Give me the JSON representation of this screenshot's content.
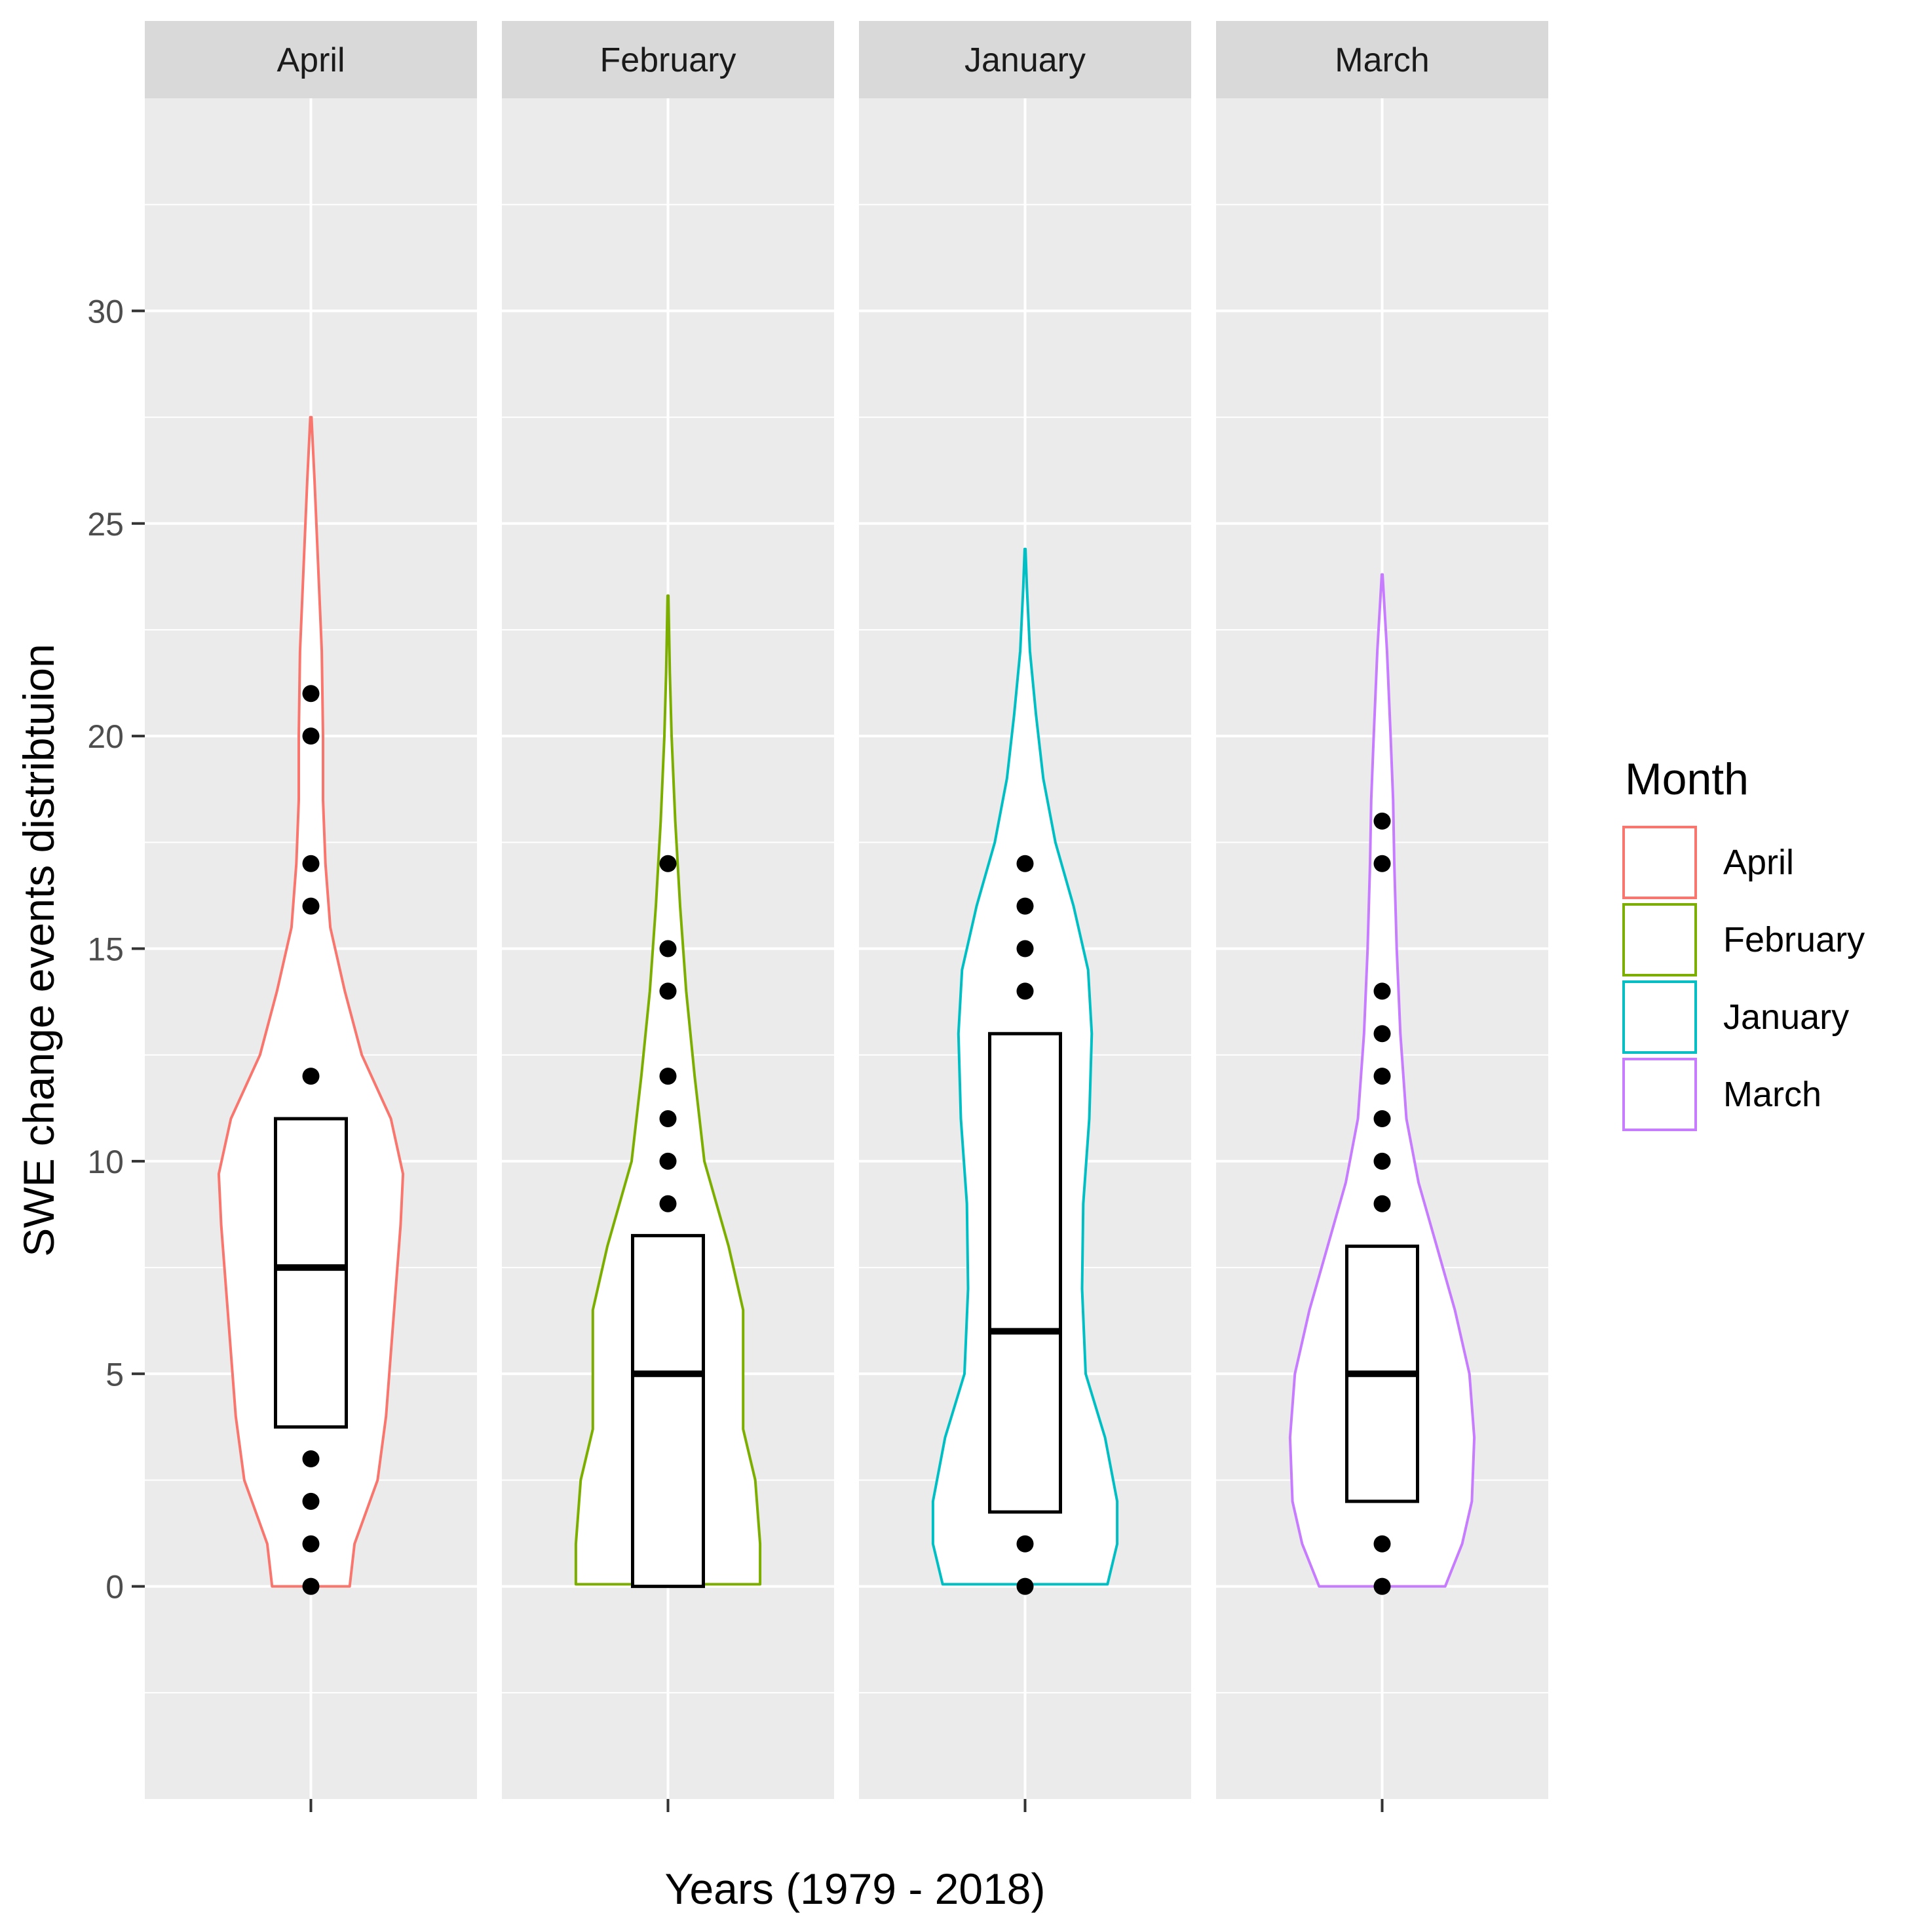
{
  "chart_data": {
    "type": "violin",
    "facet_by": "Month",
    "xlabel": "Years (1979 - 2018)",
    "ylabel": "SWE change events distribtuion",
    "ylim": [
      -5,
      35
    ],
    "y_ticks": [
      0,
      5,
      10,
      15,
      20,
      25,
      30
    ],
    "y_tick_labels": [
      "0",
      "5",
      "10",
      "15",
      "20",
      "25",
      "30"
    ],
    "grid": true,
    "legend": {
      "title": "Month",
      "position": "right",
      "entries": [
        {
          "label": "April",
          "color": "#F8766D"
        },
        {
          "label": "February",
          "color": "#7CAE00"
        },
        {
          "label": "January",
          "color": "#00BFC4"
        },
        {
          "label": "March",
          "color": "#C77CFF"
        }
      ]
    },
    "panels": [
      {
        "name": "April",
        "color": "#F8766D",
        "box": {
          "q1": 3.75,
          "median": 7.5,
          "q3": 11.0,
          "whisker_low": 0,
          "whisker_high": 27.5
        },
        "outliers": [
          0,
          1,
          2,
          3,
          12,
          16,
          17,
          20,
          21
        ],
        "violin_profile": [
          [
            0.0,
            0.32
          ],
          [
            1.0,
            0.36
          ],
          [
            2.5,
            0.55
          ],
          [
            4.0,
            0.62
          ],
          [
            5.5,
            0.66
          ],
          [
            7.0,
            0.7
          ],
          [
            8.5,
            0.74
          ],
          [
            9.7,
            0.76
          ],
          [
            11.0,
            0.66
          ],
          [
            12.5,
            0.42
          ],
          [
            14.0,
            0.28
          ],
          [
            15.5,
            0.16
          ],
          [
            17.0,
            0.12
          ],
          [
            18.5,
            0.1
          ],
          [
            20.0,
            0.1
          ],
          [
            22.0,
            0.09
          ],
          [
            24.0,
            0.06
          ],
          [
            26.0,
            0.03
          ],
          [
            27.5,
            0.005
          ]
        ]
      },
      {
        "name": "February",
        "color": "#7CAE00",
        "box": {
          "q1": 0,
          "median": 5.0,
          "q3": 8.25,
          "whisker_low": 0,
          "whisker_high": 23.3
        },
        "outliers": [
          9,
          10,
          11,
          12,
          14,
          15,
          17
        ],
        "violin_profile": [
          [
            0.05,
            0.76
          ],
          [
            1.0,
            0.76
          ],
          [
            2.5,
            0.72
          ],
          [
            3.7,
            0.62
          ],
          [
            5.0,
            0.62
          ],
          [
            6.5,
            0.62
          ],
          [
            8.0,
            0.5
          ],
          [
            10.0,
            0.3
          ],
          [
            12.0,
            0.22
          ],
          [
            14.0,
            0.15
          ],
          [
            16.0,
            0.1
          ],
          [
            18.0,
            0.06
          ],
          [
            20.0,
            0.03
          ],
          [
            21.5,
            0.015
          ],
          [
            23.3,
            0.003
          ]
        ]
      },
      {
        "name": "January",
        "color": "#00BFC4",
        "box": {
          "q1": 1.75,
          "median": 6.0,
          "q3": 13.0,
          "whisker_low": 0,
          "whisker_high": 24.4
        },
        "outliers": [
          0,
          1,
          14,
          15,
          16,
          17
        ],
        "violin_profile": [
          [
            0.05,
            0.68
          ],
          [
            1.0,
            0.76
          ],
          [
            2.0,
            0.76
          ],
          [
            3.5,
            0.66
          ],
          [
            5.0,
            0.5
          ],
          [
            7.0,
            0.47
          ],
          [
            9.0,
            0.48
          ],
          [
            11.0,
            0.53
          ],
          [
            13.0,
            0.55
          ],
          [
            14.5,
            0.52
          ],
          [
            16.0,
            0.4
          ],
          [
            17.5,
            0.25
          ],
          [
            19.0,
            0.15
          ],
          [
            20.5,
            0.09
          ],
          [
            22.0,
            0.04
          ],
          [
            23.5,
            0.015
          ],
          [
            24.4,
            0.003
          ]
        ]
      },
      {
        "name": "March",
        "color": "#C77CFF",
        "box": {
          "q1": 2.0,
          "median": 5.0,
          "q3": 8.0,
          "whisker_low": 0,
          "whisker_high": 23.8
        },
        "outliers": [
          0,
          1,
          9,
          10,
          11,
          12,
          13,
          14,
          17,
          18
        ],
        "violin_profile": [
          [
            0.0,
            0.52
          ],
          [
            1.0,
            0.66
          ],
          [
            2.0,
            0.74
          ],
          [
            3.5,
            0.76
          ],
          [
            5.0,
            0.72
          ],
          [
            6.5,
            0.6
          ],
          [
            8.0,
            0.45
          ],
          [
            9.5,
            0.3
          ],
          [
            11.0,
            0.2
          ],
          [
            13.0,
            0.15
          ],
          [
            15.0,
            0.12
          ],
          [
            17.0,
            0.1
          ],
          [
            18.5,
            0.09
          ],
          [
            20.0,
            0.07
          ],
          [
            22.0,
            0.04
          ],
          [
            23.8,
            0.003
          ]
        ]
      }
    ]
  }
}
